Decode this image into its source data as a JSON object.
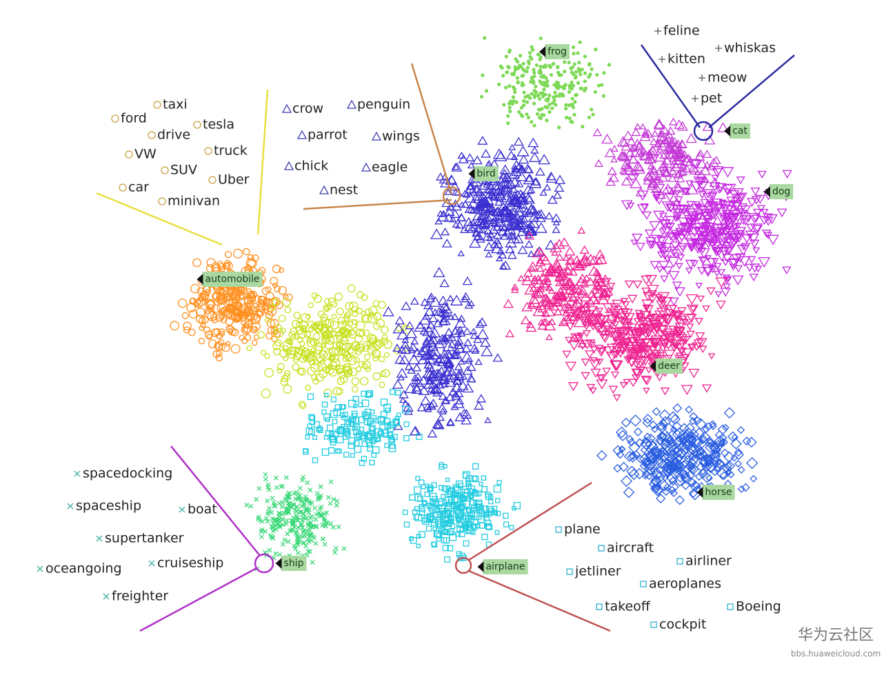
{
  "clusters": [
    {
      "label": "frog",
      "color": "#7ed957"
    },
    {
      "label": "cat",
      "color": "#c43ad6"
    },
    {
      "label": "bird",
      "color": "#3a2fd0"
    },
    {
      "label": "dog",
      "color": "#c428e0"
    },
    {
      "label": "automobile",
      "color": "#ff9020"
    },
    {
      "label": "deer",
      "color": "#ee2290"
    },
    {
      "label": "horse",
      "color": "#2a5ee0"
    },
    {
      "label": "ship",
      "color": "#3ad878"
    },
    {
      "label": "airplane",
      "color": "#22cce0"
    }
  ],
  "word_groups": [
    {
      "words": [
        "feline",
        "whiskas",
        "kitten",
        "meow",
        "pet"
      ]
    },
    {
      "words": [
        "crow",
        "penguin",
        "parrot",
        "wings",
        "chick",
        "eagle",
        "nest"
      ]
    },
    {
      "words": [
        "taxi",
        "ford",
        "tesla",
        "drive",
        "truck",
        "VW",
        "SUV",
        "Uber",
        "car",
        "minivan"
      ]
    },
    {
      "words": [
        "spacedocking",
        "spaceship",
        "boat",
        "supertanker",
        "oceangoing",
        "cruiseship",
        "freighter"
      ]
    },
    {
      "words": [
        "plane",
        "aircraft",
        "airliner",
        "jetliner",
        "aeroplanes",
        "takeoff",
        "Boeing",
        "cockpit"
      ]
    }
  ],
  "watermark": {
    "title": "华为云社区",
    "url": "bbs.huaweicloud.com"
  }
}
